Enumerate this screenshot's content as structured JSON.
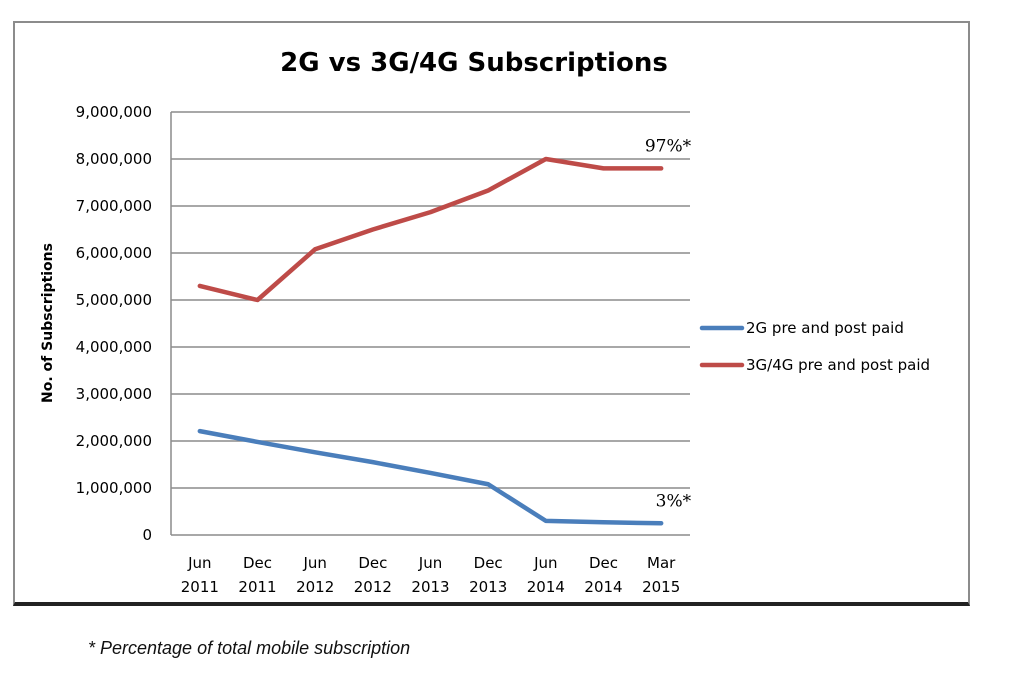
{
  "chart_data": {
    "type": "line",
    "title": "2G vs 3G/4G Subscriptions",
    "xlabel": "",
    "ylabel": "No. of Subscriptions",
    "ylim": [
      0,
      9000000
    ],
    "yticks": [
      0,
      1000000,
      2000000,
      3000000,
      4000000,
      5000000,
      6000000,
      7000000,
      8000000,
      9000000
    ],
    "ytick_labels": [
      "0",
      "1,000,000",
      "2,000,000",
      "3,000,000",
      "4,000,000",
      "5,000,000",
      "6,000,000",
      "7,000,000",
      "8,000,000",
      "9,000,000"
    ],
    "grid": true,
    "legend_position": "right",
    "categories": [
      [
        "Jun",
        "2011"
      ],
      [
        "Dec",
        "2011"
      ],
      [
        "Jun",
        "2012"
      ],
      [
        "Dec",
        "2012"
      ],
      [
        "Jun",
        "2013"
      ],
      [
        "Dec",
        "2013"
      ],
      [
        "Jun",
        "2014"
      ],
      [
        "Dec",
        "2014"
      ],
      [
        "Mar",
        "2015"
      ]
    ],
    "series": [
      {
        "name": "2G pre and post paid",
        "color": "#4a7ebb",
        "values": [
          2210000,
          1980000,
          1760000,
          1550000,
          1320000,
          1080000,
          300000,
          270000,
          250000
        ],
        "end_annotation": "3%*"
      },
      {
        "name": "3G/4G pre and post paid",
        "color": "#be4b48",
        "values": [
          5300000,
          5000000,
          6080000,
          6500000,
          6870000,
          7330000,
          8000000,
          7800000,
          7800000
        ],
        "end_annotation": "97%*"
      }
    ]
  },
  "footnote": "* Percentage of total mobile subscription"
}
